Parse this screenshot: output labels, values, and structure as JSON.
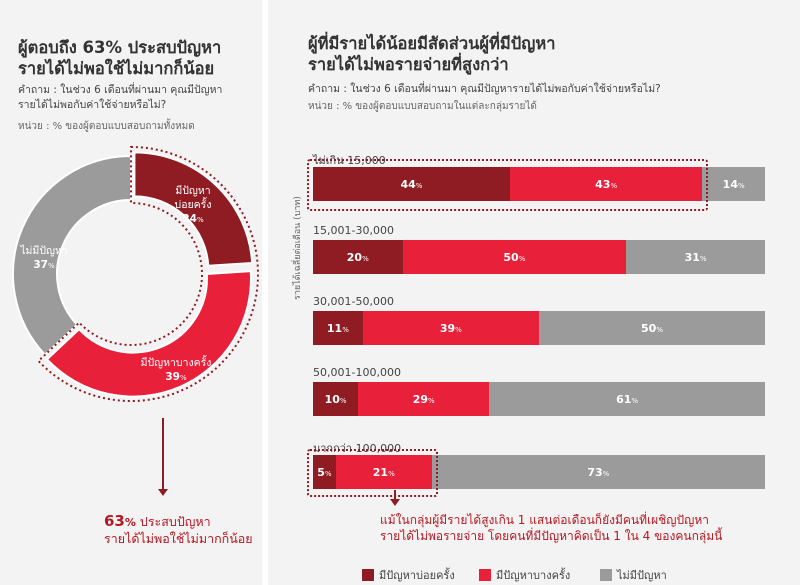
{
  "left": {
    "title_line1": "ผู้ตอบถึง 63% ประสบปัญหา",
    "title_line2": "รายได้ไม่พอใช้ไม่มากก็น้อย",
    "question_line1": "คำถาม : ในช่วง 6 เดือนที่ผ่านมา คุณมีปัญหา",
    "question_line2": "รายได้ไม่พอกับค่าใช้จ่ายหรือไม่?",
    "unit": "หน่วย : % ของผู้ตอบแบบสอบถามทั้งหมด",
    "segments": [
      {
        "label_line1": "มีปัญหา",
        "label_line2": "บ่อยครั้ง",
        "value": "24"
      },
      {
        "label_line1": "มีปัญหาบางครั้ง",
        "value": "39"
      },
      {
        "label_line1": "ไม่มีปัญหา",
        "value": "37"
      }
    ],
    "pct_unit": "%",
    "note_pct": "63",
    "note_pct_unit": "%",
    "note_line1": "ประสบปัญหา",
    "note_line2": "รายได้ไม่พอใช้ไม่มากก็น้อย"
  },
  "right": {
    "title_line1": "ผู้ที่มีรายได้น้อยมีสัดส่วนผู้ที่มีปัญหา",
    "title_line2": "รายได้ไม่พอรายจ่ายที่สูงกว่า",
    "question": "คำถาม : ในช่วง 6 เดือนที่ผ่านมา คุณมีปัญหารายได้ไม่พอกับค่าใช้จ่ายหรือไม่?",
    "unit": "หน่วย : % ของผู้ตอบแบบสอบถามในแต่ละกลุ่มรายได้",
    "y_axis_label": "รายได้เฉลี่ยต่อเดือน (บาท)",
    "note_line1": "แม้ในกลุ่มผู้มีรายได้สูงเกิน 1 แสนต่อเดือนก็ยังมีคนที่เผชิญปัญหา",
    "note_line2": "รายได้ไม่พอรายจ่าย โดยคนที่มีปัญหาคิดเป็น 1 ใน 4 ของคนกลุ่มนี้"
  },
  "legend": [
    {
      "label": "มีปัญหาบ่อยครั้ง",
      "color": "#8f1c22"
    },
    {
      "label": "มีปัญหาบางครั้ง",
      "color": "#e8203a"
    },
    {
      "label": "ไม่มีปัญหา",
      "color": "#9b9b9b"
    }
  ],
  "chart_data": [
    {
      "type": "pie",
      "categories": [
        "มีปัญหาบ่อยครั้ง",
        "มีปัญหาบางครั้ง",
        "ไม่มีปัญหา"
      ],
      "values": [
        24,
        39,
        37
      ],
      "colors": [
        "#8f1c22",
        "#e8203a",
        "#9b9b9b"
      ]
    },
    {
      "type": "bar",
      "stacked": true,
      "orientation": "horizontal",
      "categories": [
        "ไม่เกิน 15,000",
        "15,001-30,000",
        "30,001-50,000",
        "50,001-100,000",
        "มากกว่า 100,000"
      ],
      "series": [
        {
          "name": "มีปัญหาบ่อยครั้ง",
          "values": [
            44,
            20,
            11,
            10,
            5
          ],
          "color": "#8f1c22"
        },
        {
          "name": "มีปัญหาบางครั้ง",
          "values": [
            43,
            50,
            39,
            29,
            21
          ],
          "color": "#e8203a"
        },
        {
          "name": "ไม่มีปัญหา",
          "values": [
            14,
            31,
            50,
            61,
            73
          ],
          "color": "#9b9b9b"
        }
      ],
      "xlim": [
        0,
        100
      ],
      "ylabel": "รายได้เฉลี่ยต่อเดือน (บาท)",
      "legend_position": "bottom"
    }
  ]
}
